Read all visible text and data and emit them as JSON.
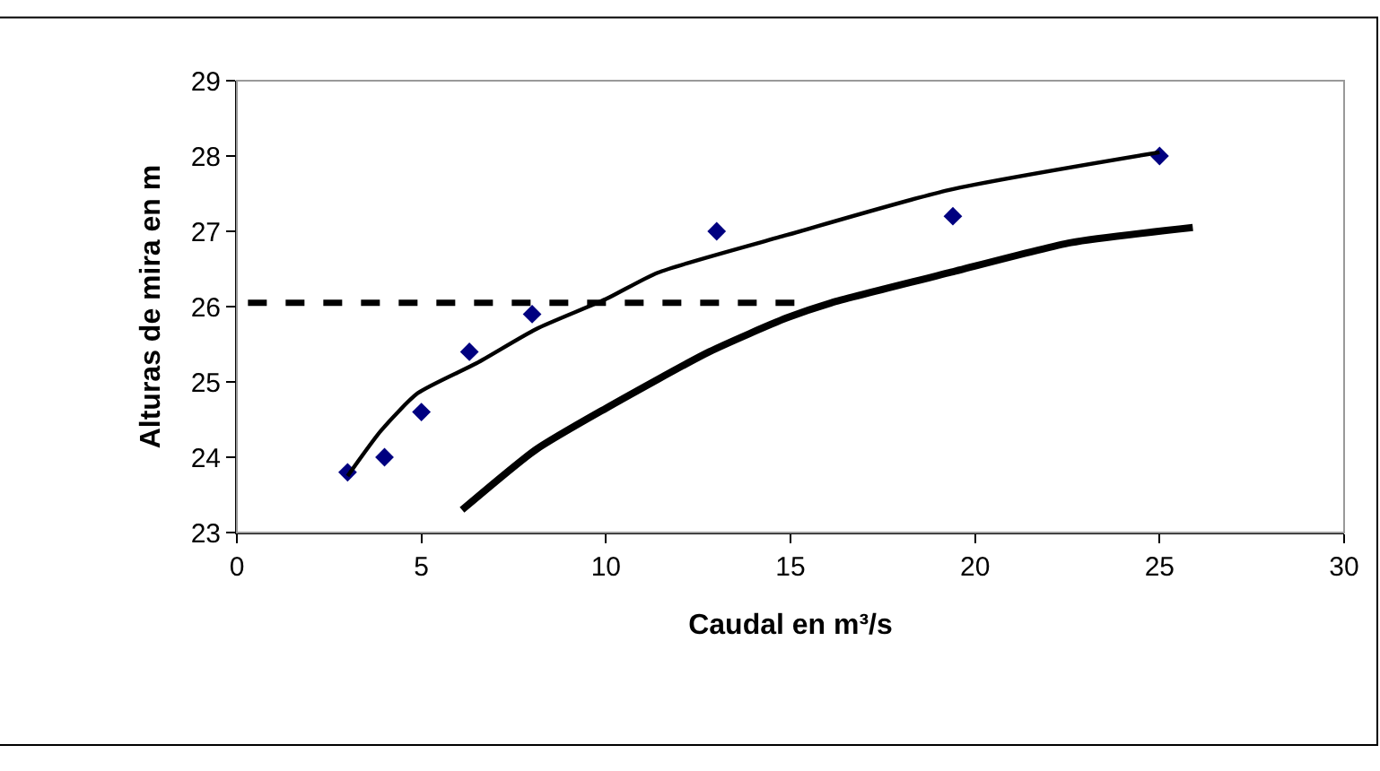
{
  "chart_data": {
    "type": "line",
    "xlabel": "Caudal en m³/s",
    "ylabel": "Alturas de mira en m",
    "xlim": [
      0,
      30
    ],
    "xticks": [
      0,
      5,
      10,
      15,
      20,
      25,
      30
    ],
    "ylim": [
      23,
      29
    ],
    "yticks": [
      23,
      24,
      25,
      26,
      27,
      28,
      29
    ],
    "grid": false,
    "legend": false,
    "series": [
      {
        "type": "scatter",
        "marker": "diamond",
        "color": "#000080",
        "x": [
          3,
          4,
          5,
          6.3,
          8,
          13,
          19.4,
          25
        ],
        "values": [
          23.8,
          24.0,
          24.6,
          25.4,
          25.9,
          27.0,
          27.2,
          28.0
        ]
      },
      {
        "marker": "none",
        "color": "#000000",
        "line_style": "solid",
        "x": [
          3,
          3.9,
          4.9,
          6.5,
          8.1,
          10,
          11.4,
          14.9,
          19.3,
          25
        ],
        "values": [
          23.75,
          24.35,
          24.85,
          25.25,
          25.7,
          26.1,
          26.45,
          26.95,
          27.55,
          28.05
        ]
      },
      {
        "marker": "none",
        "color": "#000000",
        "line_style": "solid",
        "x": [
          6.1,
          8.1,
          10,
          12.8,
          14.9,
          16.1,
          19.3,
          22.6,
          25.9
        ],
        "values": [
          23.3,
          24.1,
          24.65,
          25.4,
          25.85,
          26.05,
          26.45,
          26.85,
          27.05
        ]
      },
      {
        "marker": "none",
        "color": "#000000",
        "line_style": "dashed",
        "x": [
          0.3,
          15.3
        ],
        "values": [
          26.05,
          26.05
        ]
      }
    ]
  }
}
